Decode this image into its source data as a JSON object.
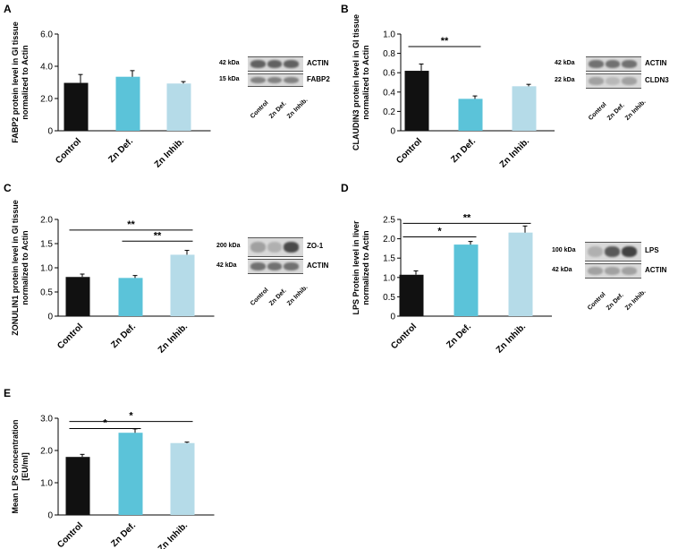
{
  "panels": [
    {
      "letter": "A",
      "chart_data": {
        "type": "bar",
        "categories": [
          "Control",
          "Zn Def.",
          "Zn Inhib."
        ],
        "values": [
          2.97,
          3.35,
          2.93
        ],
        "errors": [
          0.52,
          0.38,
          0.12
        ],
        "ylabel": [
          "FABP2 protein level in GI tissue",
          "normalized to Actin"
        ],
        "ylim": [
          0,
          6
        ],
        "yticks": [
          "0",
          "2.0",
          "4.0",
          "6.0"
        ],
        "significance": []
      },
      "blot": {
        "rows": [
          {
            "kda": "42 kDa",
            "protein": "ACTIN"
          },
          {
            "kda": "15 kDa",
            "protein": "FABP2"
          }
        ],
        "lanes": [
          "Control",
          "Zn Def.",
          "Zn Inhib."
        ]
      }
    },
    {
      "letter": "B",
      "chart_data": {
        "type": "bar",
        "categories": [
          "Control",
          "Zn Def.",
          "Zn Inhib."
        ],
        "values": [
          0.62,
          0.33,
          0.46
        ],
        "errors": [
          0.07,
          0.03,
          0.02
        ],
        "ylabel": [
          "CLAUDIN3 protein level in GI tissue",
          "normalized to Actin"
        ],
        "ylim": [
          0,
          1
        ],
        "yticks": [
          "0",
          "0.2",
          "0.4",
          "0.6",
          "0.8",
          "1.0"
        ],
        "significance": [
          {
            "from": 0,
            "to": 1,
            "label": "**"
          }
        ]
      },
      "blot": {
        "rows": [
          {
            "kda": "42 kDa",
            "protein": "ACTIN"
          },
          {
            "kda": "22 kDa",
            "protein": "CLDN3"
          }
        ],
        "lanes": [
          "Control",
          "Zn Def.",
          "Zn Inhib."
        ]
      }
    },
    {
      "letter": "C",
      "chart_data": {
        "type": "bar",
        "categories": [
          "Control",
          "Zn Def.",
          "Zn Inhib."
        ],
        "values": [
          0.81,
          0.79,
          1.27
        ],
        "errors": [
          0.06,
          0.05,
          0.09
        ],
        "ylabel": [
          "ZONULIN1 protein level in GI tissue",
          "normalized to Actin"
        ],
        "ylim": [
          0,
          2
        ],
        "yticks": [
          "0",
          "0.5",
          "1.0",
          "1.5",
          "2.0"
        ],
        "significance": [
          {
            "from": 0,
            "to": 2,
            "label": "**"
          },
          {
            "from": 1,
            "to": 2,
            "label": "**"
          }
        ]
      },
      "blot": {
        "rows": [
          {
            "kda": "200 kDa",
            "protein": "ZO-1"
          },
          {
            "kda": "42 kDa",
            "protein": "ACTIN"
          }
        ],
        "lanes": [
          "Control",
          "Zn Def.",
          "Zn Inhib."
        ]
      }
    },
    {
      "letter": "D",
      "chart_data": {
        "type": "bar",
        "categories": [
          "Control",
          "Zn Def.",
          "Zn Inhib."
        ],
        "values": [
          1.07,
          1.85,
          2.16
        ],
        "errors": [
          0.1,
          0.08,
          0.17
        ],
        "ylabel": [
          "LPS Protein level in liver",
          "normalized to Actin"
        ],
        "ylim": [
          0,
          2.5
        ],
        "yticks": [
          "0",
          "0.5",
          "1.0",
          "1.5",
          "2.0",
          "2.5"
        ],
        "significance": [
          {
            "from": 0,
            "to": 2,
            "label": "**"
          },
          {
            "from": 0,
            "to": 1,
            "label": "*"
          }
        ]
      },
      "blot": {
        "rows": [
          {
            "kda": "100 kDa",
            "protein": "LPS"
          },
          {
            "kda": "42 kDa",
            "protein": "ACTIN"
          }
        ],
        "lanes": [
          "Control",
          "Zn Def.",
          "Zn Inhib."
        ]
      }
    },
    {
      "letter": "E",
      "chart_data": {
        "type": "bar",
        "categories": [
          "Control",
          "Zn Def.",
          "Zn Inhib."
        ],
        "values": [
          1.8,
          2.55,
          2.23
        ],
        "errors": [
          0.08,
          0.12,
          0.03
        ],
        "ylabel": [
          "Mean LPS concentration",
          "[EU/ml]"
        ],
        "ylim": [
          0,
          3
        ],
        "yticks": [
          "0",
          "1.0",
          "2.0",
          "3.0"
        ],
        "significance": [
          {
            "from": 0,
            "to": 2,
            "label": "*"
          },
          {
            "from": 0,
            "to": 1,
            "label": "*"
          }
        ]
      }
    }
  ],
  "colors": {
    "Control": "#111111",
    "Zn Def.": "#5bc3d9",
    "Zn Inhib.": "#b5dbe8"
  }
}
